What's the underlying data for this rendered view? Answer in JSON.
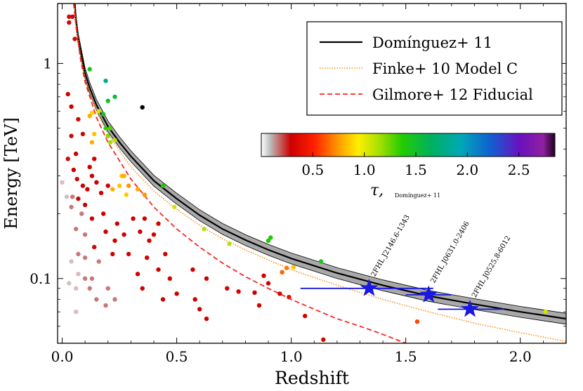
{
  "chart_data": {
    "type": "scatter",
    "xlabel": "Redshift",
    "ylabel": "Energy [TeV]",
    "xlim": [
      -0.02,
      2.2
    ],
    "ylim": [
      0.05,
      1.9
    ],
    "yscale": "log",
    "x_ticks": [
      {
        "value": 0.0,
        "label": "0.0"
      },
      {
        "value": 0.5,
        "label": "0.5"
      },
      {
        "value": 1.0,
        "label": "1.0"
      },
      {
        "value": 1.5,
        "label": "1.5"
      },
      {
        "value": 2.0,
        "label": "2.0"
      }
    ],
    "y_ticks": [
      {
        "value": 1,
        "label": "1"
      },
      {
        "value": 0.1,
        "label": "0.1"
      }
    ],
    "legend": {
      "position": "top-right",
      "entries": [
        {
          "label": "Domínguez+ 11",
          "color": "#000000",
          "style": "solid"
        },
        {
          "label": "Finke+ 10 Model C",
          "color": "#ff8c1a",
          "style": "dotted"
        },
        {
          "label": "Gilmore+ 12 Fiducial",
          "color": "#ff2222",
          "style": "dashed"
        }
      ]
    },
    "colorbar": {
      "label_symbol": "τ,",
      "label_sub": "Domínguez+ 11",
      "range": [
        0.0,
        2.85
      ],
      "ticks": [
        {
          "value": 0.5,
          "label": "0.5"
        },
        {
          "value": 1.0,
          "label": "1.0"
        },
        {
          "value": 1.5,
          "label": "1.5"
        },
        {
          "value": 2.0,
          "label": "2.0"
        },
        {
          "value": 2.5,
          "label": "2.5"
        }
      ]
    },
    "curves": {
      "dominguez": {
        "name": "Domínguez+ 11",
        "band_color": "#a9a9a9",
        "points": [
          [
            0.055,
            1.9
          ],
          [
            0.06,
            1.6
          ],
          [
            0.07,
            1.3
          ],
          [
            0.08,
            1.15
          ],
          [
            0.1,
            0.9
          ],
          [
            0.12,
            0.77
          ],
          [
            0.15,
            0.64
          ],
          [
            0.2,
            0.51
          ],
          [
            0.25,
            0.43
          ],
          [
            0.3,
            0.37
          ],
          [
            0.4,
            0.285
          ],
          [
            0.5,
            0.235
          ],
          [
            0.6,
            0.197
          ],
          [
            0.7,
            0.17
          ],
          [
            0.8,
            0.151
          ],
          [
            0.9,
            0.136
          ],
          [
            1.0,
            0.124
          ],
          [
            1.2,
            0.106
          ],
          [
            1.4,
            0.093
          ],
          [
            1.6,
            0.083
          ],
          [
            1.8,
            0.076
          ],
          [
            2.0,
            0.07
          ],
          [
            2.2,
            0.065
          ]
        ]
      },
      "finke": {
        "name": "Finke+ 10 Model C",
        "color": "#ff8c1a",
        "points": [
          [
            0.053,
            1.9
          ],
          [
            0.06,
            1.55
          ],
          [
            0.08,
            1.1
          ],
          [
            0.1,
            0.86
          ],
          [
            0.15,
            0.6
          ],
          [
            0.2,
            0.47
          ],
          [
            0.3,
            0.33
          ],
          [
            0.4,
            0.255
          ],
          [
            0.5,
            0.21
          ],
          [
            0.6,
            0.177
          ],
          [
            0.7,
            0.153
          ],
          [
            0.8,
            0.136
          ],
          [
            0.9,
            0.122
          ],
          [
            1.0,
            0.11
          ],
          [
            1.2,
            0.093
          ],
          [
            1.4,
            0.08
          ],
          [
            1.6,
            0.07
          ],
          [
            1.8,
            0.062
          ],
          [
            2.0,
            0.056
          ],
          [
            2.2,
            0.051
          ]
        ]
      },
      "gilmore": {
        "name": "Gilmore+ 12 Fiducial",
        "color": "#ff2222",
        "points": [
          [
            0.05,
            1.9
          ],
          [
            0.06,
            1.5
          ],
          [
            0.08,
            1.05
          ],
          [
            0.1,
            0.82
          ],
          [
            0.15,
            0.56
          ],
          [
            0.2,
            0.43
          ],
          [
            0.3,
            0.29
          ],
          [
            0.4,
            0.215
          ],
          [
            0.5,
            0.17
          ],
          [
            0.6,
            0.14
          ],
          [
            0.7,
            0.118
          ],
          [
            0.8,
            0.102
          ],
          [
            0.9,
            0.09
          ],
          [
            1.0,
            0.08
          ],
          [
            1.1,
            0.072
          ],
          [
            1.2,
            0.065
          ],
          [
            1.3,
            0.06
          ],
          [
            1.4,
            0.055
          ],
          [
            1.5,
            0.05
          ]
        ]
      }
    },
    "sources": [
      {
        "name": "2FHL J2146.6-1343",
        "z": 1.34,
        "energy": 0.09,
        "z_err": [
          1.04,
          1.62
        ]
      },
      {
        "name": "2FHL J0631.0-2406",
        "z": 1.6,
        "energy": 0.084,
        "z_err": [
          1.5,
          1.7
        ]
      },
      {
        "name": "2FHL J0525.8-6012",
        "z": 1.78,
        "energy": 0.072,
        "z_err": [
          1.64,
          1.93
        ]
      }
    ],
    "source_color": "#1818e0",
    "points": [
      [
        0.03,
        1.65,
        0.05
      ],
      [
        0.045,
        1.65,
        0.05
      ],
      [
        0.03,
        1.55,
        0.05
      ],
      [
        0.055,
        1.3,
        0.05
      ],
      [
        0.025,
        0.72,
        0.08
      ],
      [
        0.04,
        0.63,
        0.06
      ],
      [
        0.07,
        0.55,
        0.1
      ],
      [
        0.04,
        0.46,
        0.05
      ],
      [
        0.09,
        0.47,
        0.08
      ],
      [
        0.06,
        0.38,
        0.07
      ],
      [
        0.025,
        0.36,
        0.05
      ],
      [
        0.05,
        0.32,
        0.06
      ],
      [
        0.0,
        0.28,
        0.0
      ],
      [
        0.02,
        0.24,
        0.0
      ],
      [
        0.045,
        0.24,
        0.02
      ],
      [
        0.04,
        0.215,
        0.02
      ],
      [
        0.065,
        0.29,
        0.05
      ],
      [
        0.09,
        0.27,
        0.06
      ],
      [
        0.07,
        0.235,
        0.05
      ],
      [
        0.1,
        0.22,
        0.06
      ],
      [
        0.13,
        0.3,
        0.07
      ],
      [
        0.12,
        0.33,
        0.06
      ],
      [
        0.14,
        0.36,
        0.06
      ],
      [
        0.11,
        0.26,
        0.06
      ],
      [
        0.15,
        0.28,
        0.07
      ],
      [
        0.085,
        0.2,
        0.04
      ],
      [
        0.13,
        0.19,
        0.06
      ],
      [
        0.18,
        0.2,
        0.07
      ],
      [
        0.17,
        0.25,
        0.07
      ],
      [
        0.2,
        0.27,
        0.08
      ],
      [
        0.06,
        0.17,
        0.03
      ],
      [
        0.1,
        0.16,
        0.04
      ],
      [
        0.14,
        0.14,
        0.05
      ],
      [
        0.19,
        0.165,
        0.06
      ],
      [
        0.24,
        0.18,
        0.07
      ],
      [
        0.23,
        0.15,
        0.07
      ],
      [
        0.27,
        0.16,
        0.08
      ],
      [
        0.07,
        0.13,
        0.02
      ],
      [
        0.1,
        0.125,
        0.02
      ],
      [
        0.16,
        0.12,
        0.03
      ],
      [
        0.22,
        0.13,
        0.06
      ],
      [
        0.29,
        0.13,
        0.07
      ],
      [
        0.04,
        0.12,
        0.0
      ],
      [
        0.07,
        0.105,
        0.01
      ],
      [
        0.1,
        0.1,
        0.02
      ],
      [
        0.13,
        0.1,
        0.03
      ],
      [
        0.03,
        0.095,
        0.0
      ],
      [
        0.06,
        0.09,
        0.0
      ],
      [
        0.12,
        0.09,
        0.02
      ],
      [
        0.2,
        0.09,
        0.04
      ],
      [
        0.15,
        0.08,
        0.03
      ],
      [
        0.23,
        0.08,
        0.04
      ],
      [
        0.06,
        0.07,
        0.0
      ],
      [
        0.19,
        0.075,
        0.03
      ],
      [
        0.31,
        0.19,
        0.07
      ],
      [
        0.36,
        0.19,
        0.07
      ],
      [
        0.34,
        0.165,
        0.07
      ],
      [
        0.38,
        0.15,
        0.08
      ],
      [
        0.42,
        0.18,
        0.08
      ],
      [
        0.4,
        0.16,
        0.08
      ],
      [
        0.37,
        0.125,
        0.07
      ],
      [
        0.33,
        0.105,
        0.07
      ],
      [
        0.35,
        0.09,
        0.07
      ],
      [
        0.42,
        0.11,
        0.07
      ],
      [
        0.45,
        0.13,
        0.08
      ],
      [
        0.47,
        0.1,
        0.07
      ],
      [
        0.5,
        0.085,
        0.07
      ],
      [
        0.44,
        0.08,
        0.06
      ],
      [
        0.58,
        0.08,
        0.07
      ],
      [
        0.6,
        0.072,
        0.07
      ],
      [
        0.63,
        0.065,
        0.06
      ],
      [
        0.57,
        0.11,
        0.08
      ],
      [
        0.63,
        0.1,
        0.07
      ],
      [
        0.72,
        0.09,
        0.07
      ],
      [
        0.77,
        0.087,
        0.08
      ],
      [
        0.84,
        0.086,
        0.07
      ],
      [
        0.88,
        0.103,
        0.07
      ],
      [
        0.9,
        0.095,
        0.07
      ],
      [
        0.95,
        0.085,
        0.08
      ],
      [
        0.86,
        0.075,
        0.07
      ],
      [
        0.99,
        0.082,
        0.18
      ],
      [
        1.06,
        0.067,
        0.08
      ],
      [
        1.14,
        0.052,
        0.1
      ],
      [
        1.55,
        0.063,
        0.35
      ],
      [
        0.96,
        0.107,
        0.4
      ],
      [
        0.98,
        0.112,
        0.45
      ],
      [
        1.01,
        0.113,
        0.6
      ],
      [
        0.12,
        0.94,
        1.2
      ],
      [
        0.19,
        0.83,
        1.6
      ],
      [
        0.2,
        0.67,
        1.25
      ],
      [
        0.23,
        0.7,
        1.3
      ],
      [
        0.18,
        0.58,
        1.25
      ],
      [
        0.16,
        0.6,
        0.8
      ],
      [
        0.13,
        0.59,
        0.65
      ],
      [
        0.12,
        0.57,
        0.55
      ],
      [
        0.19,
        0.5,
        1.1
      ],
      [
        0.21,
        0.5,
        1.05
      ],
      [
        0.14,
        0.47,
        0.6
      ],
      [
        0.2,
        0.46,
        0.95
      ],
      [
        0.23,
        0.44,
        0.85
      ],
      [
        0.21,
        0.43,
        0.9
      ],
      [
        0.13,
        0.43,
        0.55
      ],
      [
        0.26,
        0.3,
        0.6
      ],
      [
        0.27,
        0.3,
        0.55
      ],
      [
        0.25,
        0.27,
        0.6
      ],
      [
        0.22,
        0.26,
        0.55
      ],
      [
        0.29,
        0.27,
        0.5
      ],
      [
        0.33,
        0.26,
        0.55
      ],
      [
        0.28,
        0.245,
        0.62
      ],
      [
        0.36,
        0.245,
        0.5
      ],
      [
        0.35,
        0.625,
        3.2
      ],
      [
        0.44,
        0.27,
        1.15
      ],
      [
        0.49,
        0.215,
        0.8
      ],
      [
        0.62,
        0.17,
        0.85
      ],
      [
        0.73,
        0.145,
        0.85
      ],
      [
        0.9,
        0.15,
        1.15
      ],
      [
        0.91,
        0.155,
        1.15
      ],
      [
        1.13,
        0.12,
        1.2
      ],
      [
        2.11,
        0.07,
        0.8
      ]
    ]
  }
}
